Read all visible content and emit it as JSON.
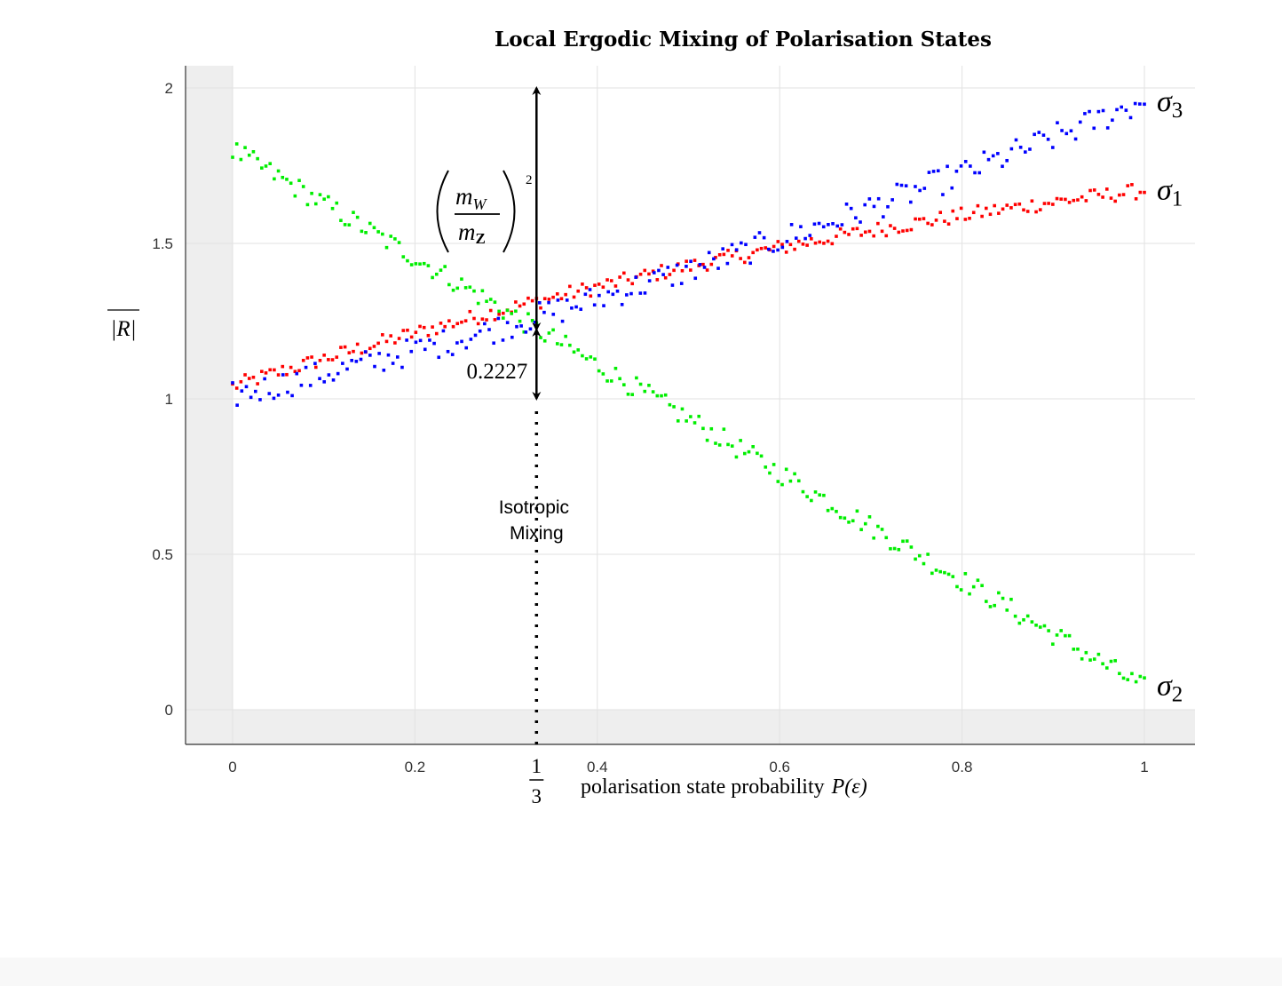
{
  "chart_data": {
    "type": "scatter",
    "title": "Local Ergodic Mixing of Polarisation States",
    "xlabel": "polarisation state probability",
    "xlabel_math": "P(ε)",
    "ylabel": "|R|",
    "xlim": [
      -0.05,
      1.05
    ],
    "ylim": [
      -0.11,
      2.07
    ],
    "x_ticks": [
      "0",
      "0.2",
      "0.4",
      "0.6",
      "0.8",
      "1"
    ],
    "x_tick_values": [
      0,
      0.2,
      0.4,
      0.6,
      0.8,
      1
    ],
    "y_ticks": [
      "0",
      "0.5",
      "1",
      "1.5",
      "2"
    ],
    "y_tick_values": [
      0,
      0.5,
      1,
      1.5,
      2
    ],
    "grid": true,
    "series": [
      {
        "name": "σ1",
        "sub": "1",
        "color": "#ff0000",
        "start": 1.04,
        "end": 1.67,
        "amplitude": 0.025,
        "points": 220
      },
      {
        "name": "σ2",
        "sub": "2",
        "color": "#00ee00",
        "start": 1.8,
        "end": 0.07,
        "amplitude": 0.035,
        "points": 220
      },
      {
        "name": "σ3",
        "sub": "3",
        "color": "#0000ff",
        "start": 1.01,
        "end": 1.96,
        "amplitude": 0.045,
        "points": 200
      }
    ],
    "annotations": {
      "isotropic_x": 0.3333,
      "isotropic_label_line1": "Isotropic",
      "isotropic_label_line2": "Mixing",
      "x_special_tick_num": "1",
      "x_special_tick_den": "3",
      "gap_value": "0.2227",
      "gap_from": 1.0,
      "gap_to": 1.2227,
      "mass_ratio_top": 2.0,
      "mass_ratio_num": "m",
      "mass_ratio_num_sub": "W",
      "mass_ratio_den": "m",
      "mass_ratio_den_sub": "Z",
      "mass_ratio_exp": "2"
    }
  }
}
